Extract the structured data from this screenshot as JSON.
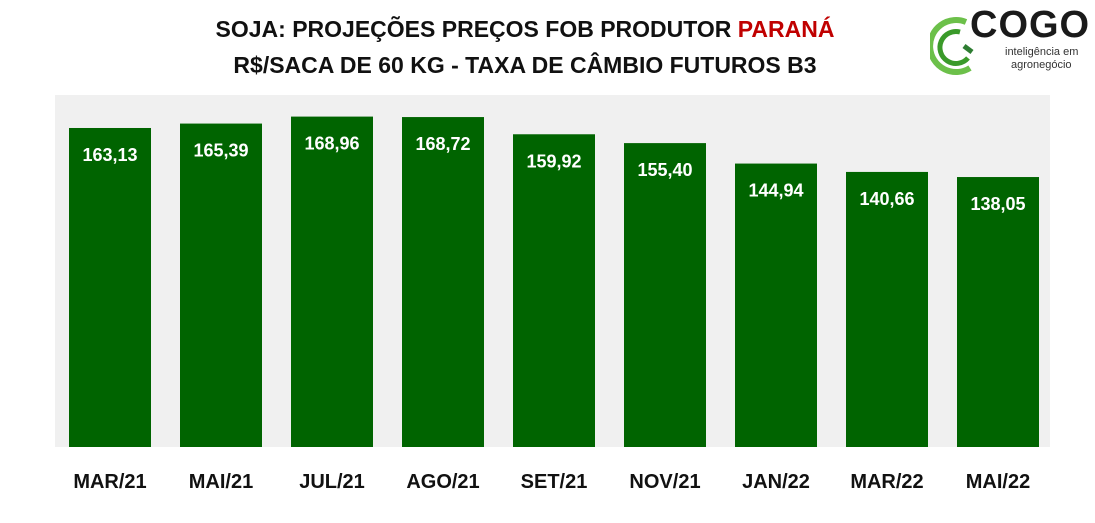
{
  "title": {
    "line1_prefix": "SOJA: PROJEÇÕES PREÇOS FOB PRODUTOR ",
    "line1_highlight": "PARANÁ",
    "line2": "R$/SACA DE 60 KG - TAXA DE CÂMBIO FUTUROS B3",
    "highlight_color": "#c00000"
  },
  "logo": {
    "name": "COGO",
    "tagline1": "inteligência em",
    "tagline2": "agronegócio"
  },
  "chart_data": {
    "type": "bar",
    "categories": [
      "MAR/21",
      "MAI/21",
      "JUL/21",
      "AGO/21",
      "SET/21",
      "NOV/21",
      "JAN/22",
      "MAR/22",
      "MAI/22"
    ],
    "values": [
      163.13,
      165.39,
      168.96,
      168.72,
      159.92,
      155.4,
      144.94,
      140.66,
      138.05
    ],
    "labels": [
      "163,13",
      "165,39",
      "168,96",
      "168,72",
      "159,92",
      "155,40",
      "144,94",
      "140,66",
      "138,05"
    ],
    "ylim": [
      0,
      180
    ],
    "bar_color": "#006400",
    "plot_background": "#f0f0f0",
    "grid": false
  }
}
